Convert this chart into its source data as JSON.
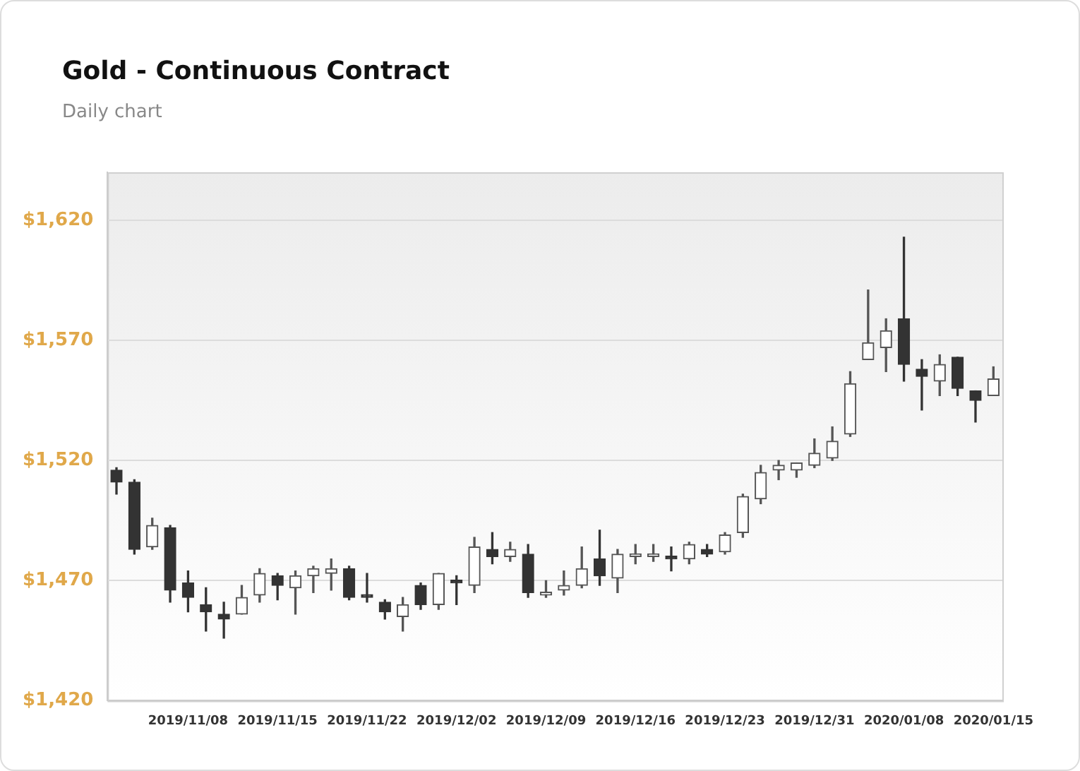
{
  "chart_data": {
    "type": "candlestick",
    "title": "Gold - Continuous Contract",
    "subtitle": "Daily chart",
    "categories": [
      null,
      null,
      null,
      null,
      "2019/11/08",
      null,
      null,
      null,
      null,
      "2019/11/15",
      null,
      null,
      null,
      null,
      "2019/11/22",
      null,
      null,
      null,
      null,
      "2019/12/02",
      null,
      null,
      null,
      null,
      "2019/12/09",
      null,
      null,
      null,
      null,
      "2019/12/16",
      null,
      null,
      null,
      null,
      "2019/12/23",
      null,
      null,
      null,
      null,
      "2019/12/31",
      null,
      null,
      null,
      null,
      "2020/01/08",
      null,
      null,
      null,
      null,
      "2020/01/15"
    ],
    "ohlc": [
      [
        1516,
        1517,
        1506,
        1511
      ],
      [
        1511,
        1512,
        1481,
        1483
      ],
      [
        1484,
        1496,
        1483,
        1493
      ],
      [
        1492,
        1493,
        1461,
        1466
      ],
      [
        1469,
        1474,
        1457,
        1463
      ],
      [
        1460,
        1467,
        1449,
        1457
      ],
      [
        1456,
        1461,
        1446,
        1454
      ],
      [
        1456,
        1468,
        1456,
        1463
      ],
      [
        1464,
        1475,
        1461,
        1473
      ],
      [
        1472,
        1473,
        1462,
        1468
      ],
      [
        1467,
        1474,
        1456,
        1472
      ],
      [
        1472,
        1476,
        1465,
        1475
      ],
      [
        1473,
        1479,
        1466,
        1475
      ],
      [
        1475,
        1476,
        1462,
        1463
      ],
      [
        1464,
        1473,
        1461,
        1463
      ],
      [
        1461,
        1462,
        1454,
        1457
      ],
      [
        1455,
        1463,
        1449,
        1460
      ],
      [
        1468,
        1469,
        1458,
        1460
      ],
      [
        1460,
        1473,
        1458,
        1473
      ],
      [
        1470,
        1472,
        1460,
        1469
      ],
      [
        1468,
        1488,
        1465,
        1484
      ],
      [
        1483,
        1490,
        1477,
        1480
      ],
      [
        1480,
        1486,
        1478,
        1483
      ],
      [
        1481,
        1485,
        1463,
        1465
      ],
      [
        1464,
        1470,
        1463,
        1465
      ],
      [
        1466,
        1474,
        1464,
        1468
      ],
      [
        1468,
        1484,
        1467,
        1475
      ],
      [
        1479,
        1491,
        1468,
        1472
      ],
      [
        1471,
        1483,
        1465,
        1481
      ],
      [
        1480,
        1485,
        1477,
        1481
      ],
      [
        1480,
        1485,
        1478,
        1481
      ],
      [
        1480,
        1484,
        1474,
        1479
      ],
      [
        1479,
        1486,
        1477,
        1485
      ],
      [
        1483,
        1485,
        1480,
        1481
      ],
      [
        1482,
        1490,
        1481,
        1489
      ],
      [
        1490,
        1506,
        1488,
        1505
      ],
      [
        1504,
        1518,
        1502,
        1515
      ],
      [
        1516,
        1520,
        1512,
        1518
      ],
      [
        1516,
        1519,
        1513,
        1519
      ],
      [
        1518,
        1529,
        1517,
        1523
      ],
      [
        1521,
        1534,
        1520,
        1528
      ],
      [
        1531,
        1557,
        1530,
        1552
      ],
      [
        1562,
        1591,
        1562,
        1569
      ],
      [
        1567,
        1579,
        1557,
        1574
      ],
      [
        1579,
        1613,
        1553,
        1560
      ],
      [
        1558,
        1562,
        1541,
        1555
      ],
      [
        1553,
        1564,
        1547,
        1560
      ],
      [
        1563,
        1563,
        1547,
        1550
      ],
      [
        1549,
        1549,
        1536,
        1545
      ],
      [
        1547,
        1559,
        1547,
        1554
      ]
    ],
    "ylim": [
      1420,
      1640
    ],
    "yticks": [
      {
        "value": 1420,
        "label": "$1,420"
      },
      {
        "value": 1470,
        "label": "$1,470"
      },
      {
        "value": 1520,
        "label": "$1,520"
      },
      {
        "value": 1570,
        "label": "$1,570"
      },
      {
        "value": 1620,
        "label": "$1,620"
      }
    ],
    "grid": "y"
  }
}
